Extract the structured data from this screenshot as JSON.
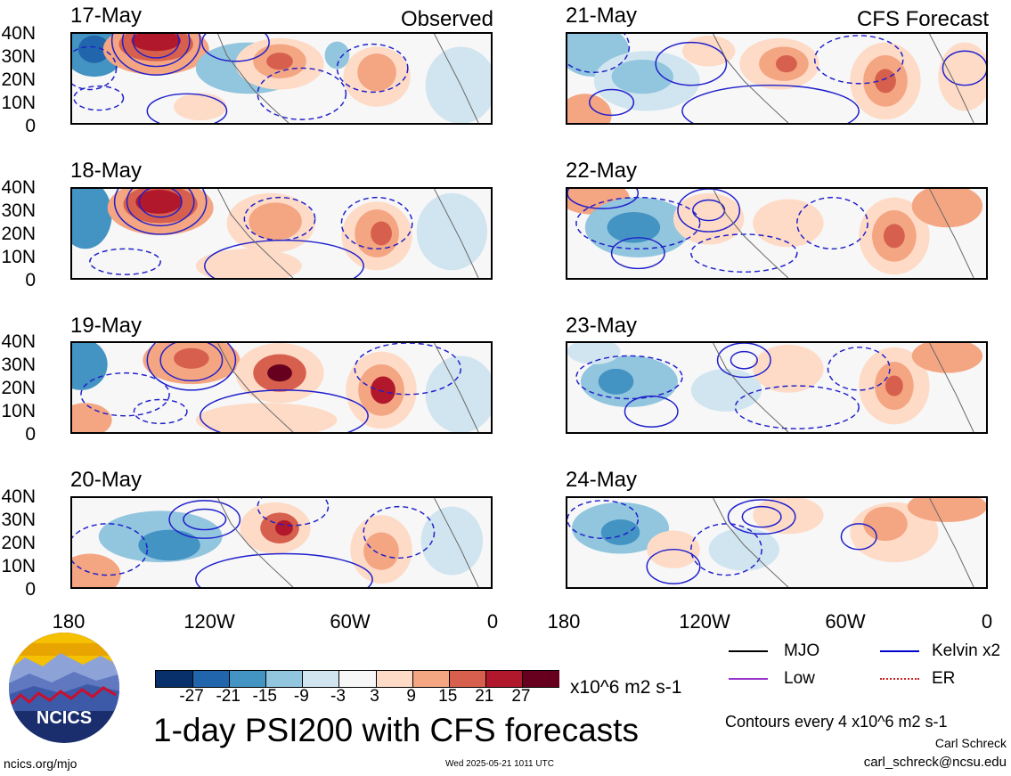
{
  "panels_left": [
    {
      "date": "17-May",
      "corner": "Observed"
    },
    {
      "date": "18-May",
      "corner": ""
    },
    {
      "date": "19-May",
      "corner": ""
    },
    {
      "date": "20-May",
      "corner": ""
    }
  ],
  "panels_right": [
    {
      "date": "21-May",
      "corner": "CFS Forecast"
    },
    {
      "date": "22-May",
      "corner": ""
    },
    {
      "date": "23-May",
      "corner": ""
    },
    {
      "date": "24-May",
      "corner": ""
    }
  ],
  "y_ticks": [
    "40N",
    "30N",
    "20N",
    "10N",
    "0"
  ],
  "x_ticks": [
    "180",
    "120W",
    "60W",
    "0"
  ],
  "colorbar": {
    "colors": [
      "#08306b",
      "#2166ac",
      "#4393c3",
      "#92c5de",
      "#d1e5f0",
      "#f7f7f7",
      "#fddbc7",
      "#f4a582",
      "#d6604d",
      "#b2182b",
      "#67001f"
    ],
    "ticks": [
      "-27",
      "-21",
      "-15",
      "-9",
      "-3",
      "3",
      "9",
      "15",
      "21",
      "27"
    ],
    "units": "x10^6 m2 s-1"
  },
  "legend": [
    {
      "label": "MJO",
      "color": "#000000"
    },
    {
      "label": "Kelvin x2",
      "color": "#0000cc"
    },
    {
      "label": "Low",
      "color": "#9933cc"
    },
    {
      "label": "ER",
      "color": "#cc2222"
    }
  ],
  "title": "1-day PSI200 with CFS forecasts",
  "contour_note": "Contours every 4 x10^6 m2 s-1",
  "author": "Carl Schreck",
  "email": "carl_schreck@ncsu.edu",
  "url": "ncics.org/mjo",
  "timestamp": "Wed 2025-05-21 1011 UTC",
  "logo_text": "NCICS"
}
